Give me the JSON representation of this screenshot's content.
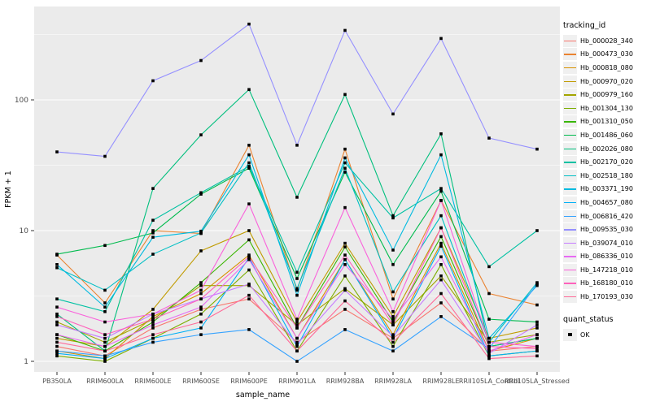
{
  "chart_data": {
    "type": "line",
    "title": "",
    "xlabel": "sample_name",
    "ylabel": "FPKM + 1",
    "y_scale": "log10",
    "y_ticks": [
      1,
      10,
      100
    ],
    "y_minor_ticks": [
      3.162,
      31.62,
      316.2
    ],
    "ylim": [
      1,
      500
    ],
    "grid": true,
    "panel_color": "#EBEBEB",
    "grid_color": "#FFFFFF",
    "marker": "black-square",
    "legend_position": "right",
    "categories": [
      "PB350LA",
      "RRIM600LA",
      "RRIM600LE",
      "RRIM600SE",
      "RRIM600PE",
      "RRIM901LA",
      "RRIM928BA",
      "RRIM928LA",
      "RRIM928LE",
      "RRII105LA_Control",
      "RRII105LA_Stressed"
    ],
    "series": [
      {
        "name": "Hb_000028_340",
        "color": "#F8766D",
        "values": [
          1.3,
          1.1,
          1.8,
          2.5,
          3.0,
          1.4,
          2.5,
          1.5,
          2.8,
          1.2,
          1.3
        ]
      },
      {
        "name": "Hb_000473_030",
        "color": "#EA8331",
        "values": [
          6.5,
          2.8,
          10,
          9.5,
          45,
          3.5,
          42,
          3.0,
          17,
          3.3,
          2.7
        ]
      },
      {
        "name": "Hb_000818_080",
        "color": "#D89000",
        "values": [
          1.2,
          1.05,
          2.2,
          3.3,
          6.5,
          1.5,
          6.0,
          1.6,
          8.0,
          1.2,
          1.5
        ]
      },
      {
        "name": "Hb_000970_020",
        "color": "#C09B00",
        "values": [
          1.5,
          1.3,
          2.5,
          7.0,
          10,
          2.0,
          8.0,
          2.2,
          10.5,
          1.5,
          1.8
        ]
      },
      {
        "name": "Hb_000979_160",
        "color": "#A3A500",
        "values": [
          2.0,
          1.4,
          2.1,
          3.8,
          3.8,
          1.9,
          3.6,
          1.9,
          4.5,
          1.4,
          1.6
        ]
      },
      {
        "name": "Hb_001304_130",
        "color": "#7CAE00",
        "values": [
          1.1,
          1.0,
          1.5,
          2.3,
          5.0,
          1.2,
          4.5,
          1.3,
          5.5,
          1.1,
          1.2
        ]
      },
      {
        "name": "Hb_001310_050",
        "color": "#39B600",
        "values": [
          1.6,
          1.2,
          2.0,
          4.0,
          8.5,
          1.8,
          7.5,
          2.0,
          9.0,
          1.3,
          1.5
        ]
      },
      {
        "name": "Hb_001486_060",
        "color": "#00BB4E",
        "values": [
          6.6,
          7.7,
          9.6,
          19,
          30,
          4.3,
          28,
          5.5,
          20,
          2.1,
          2.0
        ]
      },
      {
        "name": "Hb_002026_080",
        "color": "#00BF7D",
        "values": [
          2.3,
          1.2,
          21,
          54,
          120,
          18,
          110,
          13,
          55,
          1.3,
          1.5
        ]
      },
      {
        "name": "Hb_002170_020",
        "color": "#00C1A3",
        "values": [
          3.0,
          2.4,
          12,
          19.5,
          31,
          4.8,
          33,
          12.5,
          21,
          5.3,
          10
        ]
      },
      {
        "name": "Hb_002518_180",
        "color": "#00BFC4",
        "values": [
          5.2,
          3.5,
          6.6,
          9.6,
          33,
          3.6,
          30,
          3.4,
          13,
          1.4,
          4.0
        ]
      },
      {
        "name": "Hb_003371_190",
        "color": "#00BAE0",
        "values": [
          5.5,
          2.6,
          8.9,
          9.9,
          38,
          3.2,
          36,
          7.1,
          38,
          1.5,
          3.8
        ]
      },
      {
        "name": "Hb_004657_080",
        "color": "#00B0F6",
        "values": [
          1.15,
          1.05,
          1.5,
          1.8,
          6.2,
          1.3,
          6.0,
          1.5,
          7.6,
          1.1,
          1.2
        ]
      },
      {
        "name": "Hb_006816_420",
        "color": "#35A2FF",
        "values": [
          1.2,
          1.1,
          1.4,
          1.6,
          1.75,
          1.0,
          1.75,
          1.2,
          2.2,
          1.25,
          3.9
        ]
      },
      {
        "name": "Hb_009535_030",
        "color": "#9590FF",
        "values": [
          40,
          37,
          140,
          200,
          380,
          45,
          340,
          78,
          295,
          51,
          42
        ]
      },
      {
        "name": "Hb_039074_010",
        "color": "#C77CFF",
        "values": [
          1.9,
          1.5,
          2.3,
          3.0,
          3.9,
          1.35,
          3.5,
          1.55,
          4.2,
          1.15,
          1.9
        ]
      },
      {
        "name": "Hb_086336_010",
        "color": "#E76BF3",
        "values": [
          1.6,
          1.3,
          1.9,
          2.6,
          6.0,
          1.5,
          5.5,
          2.1,
          6.3,
          1.2,
          1.6
        ]
      },
      {
        "name": "Hb_147218_010",
        "color": "#FA62DB",
        "values": [
          2.6,
          2.0,
          2.3,
          3.5,
          16,
          2.1,
          15,
          2.4,
          17,
          1.4,
          1.3
        ]
      },
      {
        "name": "Hb_168180_010",
        "color": "#FF62BC",
        "values": [
          2.2,
          1.6,
          2.1,
          3.0,
          6.3,
          1.8,
          6.5,
          1.9,
          10.5,
          1.3,
          1.25
        ]
      },
      {
        "name": "Hb_170193_030",
        "color": "#FF6A98",
        "values": [
          1.4,
          1.2,
          1.6,
          2.0,
          3.2,
          1.2,
          2.9,
          1.4,
          3.3,
          1.05,
          1.1
        ]
      }
    ]
  },
  "legend": {
    "series_title": "tracking_id",
    "status_title": "quant_status",
    "status_label": "OK"
  }
}
